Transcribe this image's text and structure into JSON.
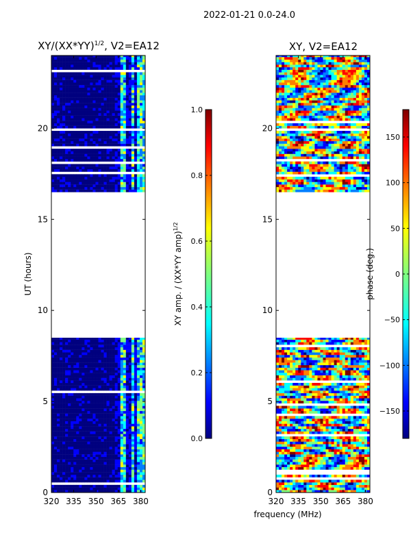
{
  "figure_title": "2022-01-21 0.0-24.0",
  "shared_xlabel": "frequency (MHz)",
  "colors": {
    "jet": [
      "#00007f",
      "#0000ff",
      "#007fff",
      "#00ffff",
      "#7fff7f",
      "#ffff00",
      "#ff7f00",
      "#ff0000",
      "#7f0000"
    ],
    "missing": "#ffffff"
  },
  "chart_data": [
    {
      "type": "heatmap",
      "title": "XY/(XX*YY)",
      "title_sup": "1/2",
      "title_suffix": ", V2=EA12",
      "xlabel": "",
      "ylabel": "UT (hours)",
      "xlim": [
        320,
        383
      ],
      "ylim": [
        0,
        24
      ],
      "xticks": [
        320,
        335,
        350,
        365,
        380
      ],
      "yticks": [
        0,
        5,
        10,
        15,
        20
      ],
      "data_blocks_hours": [
        [
          0,
          8.5
        ],
        [
          16.5,
          24
        ]
      ],
      "colorbar": {
        "label": "XY amp. / (XX*YY amp)",
        "label_sup": "1/2",
        "range": [
          0.0,
          1.0
        ],
        "ticks": [
          "0.0",
          "0.2",
          "0.4",
          "0.6",
          "0.8",
          "1.0"
        ]
      }
    },
    {
      "type": "heatmap",
      "title": "XY, V2=EA12",
      "xlabel": "",
      "ylabel": "",
      "xlim": [
        320,
        383
      ],
      "ylim": [
        0,
        24
      ],
      "xticks": [
        320,
        335,
        350,
        365,
        380
      ],
      "yticks": [
        0,
        5,
        10,
        15,
        20
      ],
      "data_blocks_hours": [
        [
          0,
          8.5
        ],
        [
          16.5,
          24
        ]
      ],
      "colorbar": {
        "label": "phase (deg.)",
        "range": [
          -180,
          180
        ],
        "ticks": [
          "150",
          "100",
          "50",
          "0",
          "−50",
          "−100",
          "−150"
        ],
        "tick_values": [
          150,
          100,
          50,
          0,
          -50,
          -100,
          -150
        ]
      }
    }
  ]
}
